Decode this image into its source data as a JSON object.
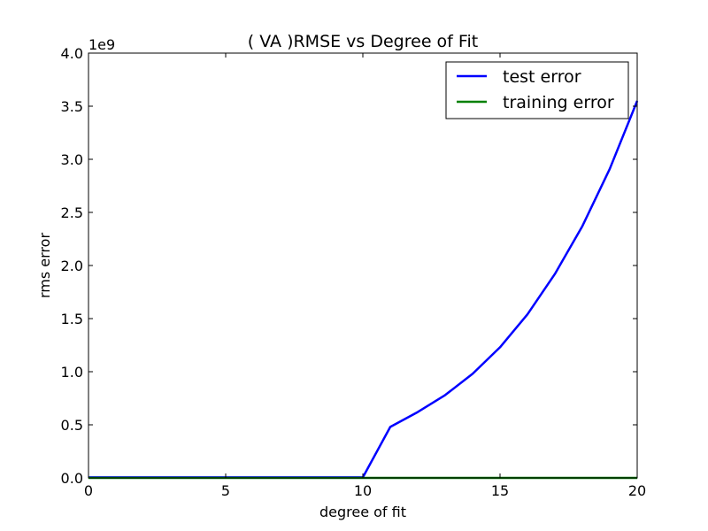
{
  "chart_data": {
    "type": "line",
    "title": "(  VA  )RMSE vs Degree of Fit",
    "xlabel": "degree of fit",
    "ylabel": "rms error",
    "y_scale_label": "1e9",
    "xlim": [
      0,
      20
    ],
    "ylim": [
      0,
      4.0
    ],
    "x_ticks": [
      0,
      5,
      10,
      15,
      20
    ],
    "x_tick_labels": [
      "0",
      "5",
      "10",
      "15",
      "20"
    ],
    "y_ticks": [
      0,
      0.5,
      1.0,
      1.5,
      2.0,
      2.5,
      3.0,
      3.5,
      4.0
    ],
    "y_tick_labels": [
      "0.0",
      "0.5",
      "1.0",
      "1.5",
      "2.0",
      "2.5",
      "3.0",
      "3.5",
      "4.0"
    ],
    "grid": false,
    "legend_position": "top-right",
    "x": [
      0,
      1,
      2,
      3,
      4,
      5,
      6,
      7,
      8,
      9,
      10,
      11,
      12,
      13,
      14,
      15,
      16,
      17,
      18,
      19,
      20
    ],
    "series": [
      {
        "name": "test error",
        "color": "#0000ff",
        "values": [
          0.005,
          0.005,
          0.005,
          0.005,
          0.005,
          0.005,
          0.005,
          0.005,
          0.005,
          0.005,
          0.005,
          0.48,
          0.62,
          0.78,
          0.98,
          1.23,
          1.54,
          1.92,
          2.37,
          2.91,
          3.55
        ]
      },
      {
        "name": "training error",
        "color": "#008000",
        "values": [
          0.0,
          0.0,
          0.0,
          0.0,
          0.0,
          0.0,
          0.0,
          0.0,
          0.0,
          0.0,
          0.0,
          0.0,
          0.0,
          0.0,
          0.0,
          0.0,
          0.0,
          0.0,
          0.0,
          0.0,
          0.0
        ]
      }
    ]
  }
}
